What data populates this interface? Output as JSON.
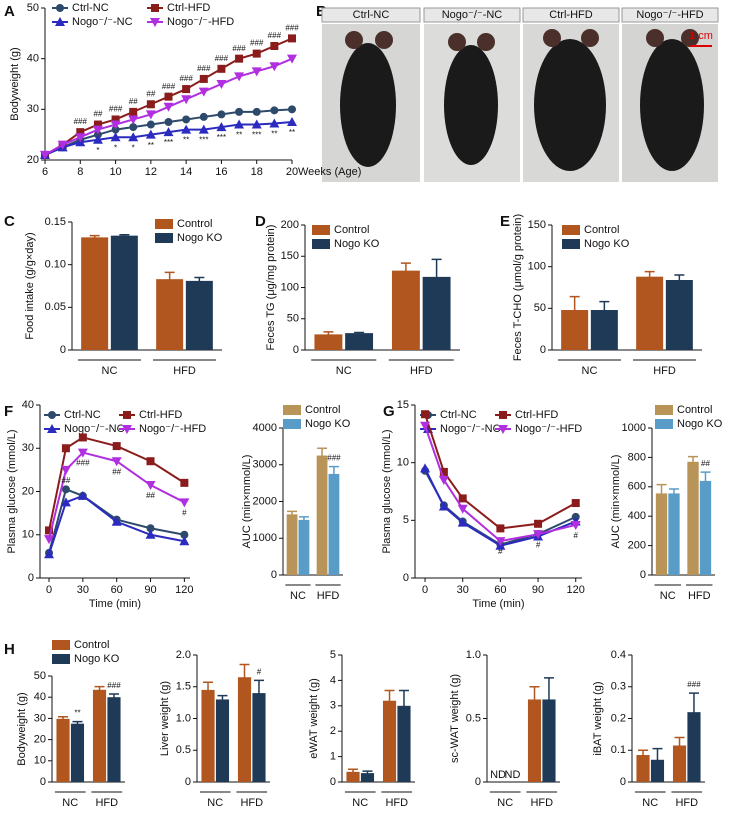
{
  "photos": {
    "panel": "B",
    "labels": [
      "Ctrl-NC",
      "Nogo⁻/⁻-NC",
      "Ctrl-HFD",
      "Nogo⁻/⁻-HFD"
    ],
    "scale_bar": "1 cm"
  },
  "chart_data": [
    {
      "type": "line",
      "panel": "A",
      "xlabel": "Weeks (Age)",
      "ylabel": "Bodyweight (g)",
      "x": [
        6,
        7,
        8,
        9,
        10,
        11,
        12,
        13,
        14,
        15,
        16,
        17,
        18,
        19,
        20
      ],
      "xlim": [
        6,
        20
      ],
      "xticks": [
        6,
        8,
        10,
        12,
        14,
        16,
        18,
        20
      ],
      "ylim": [
        20,
        50
      ],
      "yticks": [
        20,
        30,
        40,
        50
      ],
      "legend": "upper left",
      "series": [
        {
          "name": "Ctrl-NC",
          "color": "#2e4a6b",
          "marker": "circle",
          "values": [
            21,
            22.5,
            24,
            25,
            26,
            26.5,
            27,
            27.5,
            28,
            28.5,
            29,
            29.5,
            29.5,
            29.8,
            30
          ]
        },
        {
          "name": "Ctrl-HFD",
          "color": "#8b1c1c",
          "marker": "square",
          "values": [
            21,
            23,
            25.5,
            27,
            28,
            29.5,
            31,
            32.5,
            34,
            36,
            38,
            40,
            41,
            42.5,
            44
          ]
        },
        {
          "name": "Nogo⁻/⁻-NC",
          "color": "#2b2bc0",
          "marker": "triangle",
          "values": [
            21,
            22.5,
            23.5,
            24,
            24.5,
            24.5,
            25,
            25.5,
            26,
            26,
            26.5,
            27,
            27,
            27.2,
            27.5
          ]
        },
        {
          "name": "Nogo⁻/⁻-HFD",
          "color": "#b02fe0",
          "marker": "triangle-down",
          "values": [
            21,
            23,
            24.5,
            26,
            27,
            28,
            29,
            30.5,
            32,
            33.5,
            35,
            36.5,
            37.5,
            38.5,
            40
          ]
        }
      ],
      "annotations": [
        {
          "series": 1,
          "x": 8,
          "text": "###"
        },
        {
          "series": 1,
          "x": 9,
          "text": "##"
        },
        {
          "series": 1,
          "x": 10,
          "text": "###"
        },
        {
          "series": 1,
          "x": 11,
          "text": "##"
        },
        {
          "series": 1,
          "x": 12,
          "text": "##"
        },
        {
          "series": 1,
          "x": 13,
          "text": "###"
        },
        {
          "series": 1,
          "x": 14,
          "text": "###"
        },
        {
          "series": 1,
          "x": 15,
          "text": "###"
        },
        {
          "series": 1,
          "x": 16,
          "text": "###"
        },
        {
          "series": 1,
          "x": 17,
          "text": "###"
        },
        {
          "series": 1,
          "x": 18,
          "text": "###"
        },
        {
          "series": 1,
          "x": 19,
          "text": "###"
        },
        {
          "series": 1,
          "x": 20,
          "text": "###"
        },
        {
          "series": 2,
          "x": 9,
          "text": "*"
        },
        {
          "series": 2,
          "x": 10,
          "text": "*"
        },
        {
          "series": 2,
          "x": 11,
          "text": "*"
        },
        {
          "series": 2,
          "x": 12,
          "text": "**"
        },
        {
          "series": 2,
          "x": 13,
          "text": "***"
        },
        {
          "series": 2,
          "x": 14,
          "text": "**"
        },
        {
          "series": 2,
          "x": 15,
          "text": "***"
        },
        {
          "series": 2,
          "x": 16,
          "text": "***"
        },
        {
          "series": 2,
          "x": 17,
          "text": "**"
        },
        {
          "series": 2,
          "x": 18,
          "text": "***"
        },
        {
          "series": 2,
          "x": 19,
          "text": "**"
        },
        {
          "series": 2,
          "x": 20,
          "text": "**"
        }
      ]
    },
    {
      "type": "bar",
      "panel": "C",
      "ylabel": "Food intake (g/g×day)",
      "categories": [
        "NC",
        "HFD"
      ],
      "ylim": [
        0,
        0.15
      ],
      "yticks": [
        0,
        0.05,
        {
          "value": 0.1,
          "label": "0.10"
        },
        0.15
      ],
      "legend": "upper right",
      "series": [
        {
          "name": "Control",
          "color": "#b0561e",
          "values": [
            0.132,
            0.083
          ],
          "errors": [
            0.002,
            0.008
          ]
        },
        {
          "name": "Nogo KO",
          "color": "#1e3a56",
          "values": [
            0.134,
            0.081
          ],
          "errors": [
            0.001,
            0.004
          ]
        }
      ]
    },
    {
      "type": "bar",
      "panel": "D",
      "ylabel": "Feces TG (μg/mg protein)",
      "categories": [
        "NC",
        "HFD"
      ],
      "ylim": [
        0,
        200
      ],
      "yticks": [
        0,
        50,
        100,
        150,
        200
      ],
      "legend": "upper left",
      "series": [
        {
          "name": "Control",
          "color": "#b0561e",
          "values": [
            25,
            127
          ],
          "errors": [
            4,
            12
          ]
        },
        {
          "name": "Nogo KO",
          "color": "#1e3a56",
          "values": [
            27,
            117
          ],
          "errors": [
            1,
            28
          ]
        }
      ]
    },
    {
      "type": "bar",
      "panel": "E",
      "ylabel": "Feces T-CHO (μmol/g protein)",
      "categories": [
        "NC",
        "HFD"
      ],
      "ylim": [
        0,
        150
      ],
      "yticks": [
        0,
        50,
        100,
        150
      ],
      "legend": "upper left",
      "series": [
        {
          "name": "Control",
          "color": "#b0561e",
          "values": [
            48,
            88
          ],
          "errors": [
            16,
            6
          ]
        },
        {
          "name": "Nogo KO",
          "color": "#1e3a56",
          "values": [
            48,
            84
          ],
          "errors": [
            10,
            6
          ]
        }
      ]
    },
    {
      "type": "line",
      "panel": "F",
      "xlabel": "Time (min)",
      "ylabel": "Plasma glucose (mmol/L)",
      "x": [
        0,
        15,
        30,
        60,
        90,
        120
      ],
      "xlim": [
        -8,
        125
      ],
      "xticks": [
        0,
        30,
        60,
        90,
        120
      ],
      "ylim": [
        0,
        40
      ],
      "yticks": [
        0,
        10,
        20,
        30,
        40
      ],
      "legend": "upper left",
      "series": [
        {
          "name": "Ctrl-NC",
          "color": "#2e4a6b",
          "marker": "circle",
          "values": [
            5.8,
            20.5,
            19,
            13.5,
            11.5,
            10
          ]
        },
        {
          "name": "Ctrl-HFD",
          "color": "#8b1c1c",
          "marker": "square",
          "values": [
            11,
            30,
            32.5,
            30.5,
            27,
            22
          ]
        },
        {
          "name": "Nogo⁻/⁻-NC",
          "color": "#2b2bc0",
          "marker": "triangle",
          "values": [
            5.5,
            17.5,
            19,
            13,
            10,
            8.5
          ]
        },
        {
          "name": "Nogo⁻/⁻-HFD",
          "color": "#b02fe0",
          "marker": "triangle-down",
          "values": [
            9,
            25,
            29,
            27,
            21.5,
            17.5
          ]
        }
      ],
      "annotations": [
        {
          "series": 3,
          "x": 15,
          "text": "##"
        },
        {
          "series": 3,
          "x": 30,
          "text": "###"
        },
        {
          "series": 3,
          "x": 60,
          "text": "##"
        },
        {
          "series": 3,
          "x": 90,
          "text": "##"
        },
        {
          "series": 3,
          "x": 120,
          "text": "#"
        }
      ]
    },
    {
      "type": "bar",
      "ylabel": "AUC (min×mmol/L)",
      "categories": [
        "NC",
        "HFD"
      ],
      "ylim": [
        0,
        4000
      ],
      "yticks": [
        0,
        1000,
        2000,
        3000,
        4000
      ],
      "legend": "upper left",
      "series": [
        {
          "name": "Control",
          "color": "#b89458",
          "values": [
            1650,
            3250
          ],
          "errors": [
            80,
            200
          ]
        },
        {
          "name": "Nogo KO",
          "color": "#5a9cc8",
          "values": [
            1500,
            2750
          ],
          "errors": [
            80,
            200
          ]
        }
      ],
      "annotations": [
        {
          "series": 1,
          "index": 1,
          "text": "###"
        }
      ]
    },
    {
      "type": "line",
      "panel": "G",
      "xlabel": "Time (min)",
      "ylabel": "Plasma glucose (mmol/L)",
      "x": [
        0,
        15,
        30,
        60,
        90,
        120
      ],
      "xlim": [
        -8,
        125
      ],
      "xticks": [
        0,
        30,
        60,
        90,
        120
      ],
      "ylim": [
        0,
        15
      ],
      "yticks": [
        0,
        5,
        10,
        15
      ],
      "legend": "upper left",
      "series": [
        {
          "name": "Ctrl-NC",
          "color": "#2e4a6b",
          "marker": "circle",
          "values": [
            9.3,
            6.3,
            4.9,
            2.9,
            3.8,
            5.3
          ]
        },
        {
          "name": "Ctrl-HFD",
          "color": "#8b1c1c",
          "marker": "square",
          "values": [
            14.2,
            9.2,
            6.9,
            4.3,
            4.7,
            6.5
          ]
        },
        {
          "name": "Nogo⁻/⁻-NC",
          "color": "#2b2bc0",
          "marker": "triangle",
          "values": [
            9.5,
            6.2,
            4.8,
            2.8,
            3.6,
            4.9
          ]
        },
        {
          "name": "Nogo⁻/⁻-HFD",
          "color": "#b02fe0",
          "marker": "triangle-down",
          "values": [
            13.2,
            8.5,
            6,
            3.2,
            3.8,
            4.6
          ]
        }
      ],
      "annotations": [
        {
          "series": 3,
          "x": 60,
          "text": "#"
        },
        {
          "series": 3,
          "x": 90,
          "text": "#"
        },
        {
          "series": 3,
          "x": 120,
          "text": "#"
        }
      ]
    },
    {
      "type": "bar",
      "ylabel": "AUC (min×mmol/L)",
      "categories": [
        "NC",
        "HFD"
      ],
      "ylim": [
        0,
        1000
      ],
      "yticks": [
        0,
        200,
        400,
        600,
        800,
        1000
      ],
      "legend": "upper left",
      "series": [
        {
          "name": "Control",
          "color": "#b89458",
          "values": [
            555,
            770
          ],
          "errors": [
            60,
            35
          ]
        },
        {
          "name": "Nogo KO",
          "color": "#5a9cc8",
          "values": [
            555,
            640
          ],
          "errors": [
            30,
            60
          ]
        }
      ],
      "annotations": [
        {
          "series": 1,
          "index": 1,
          "text": "##"
        }
      ]
    },
    {
      "type": "bar",
      "panel": "H",
      "ylabel": "Bodyweight (g)",
      "categories": [
        "NC",
        "HFD"
      ],
      "ylim": [
        0,
        50
      ],
      "yticks": [
        0,
        10,
        20,
        30,
        40,
        50
      ],
      "legend": "upper left",
      "series": [
        {
          "name": "Control",
          "color": "#b0561e",
          "values": [
            29.8,
            43.5
          ],
          "errors": [
            1,
            1.5
          ]
        },
        {
          "name": "Nogo KO",
          "color": "#1e3a56",
          "values": [
            27.5,
            40
          ],
          "errors": [
            1,
            1.5
          ]
        }
      ],
      "annotations": [
        {
          "series": 1,
          "index": 0,
          "text": "**"
        },
        {
          "series": 1,
          "index": 1,
          "text": "###"
        }
      ]
    },
    {
      "type": "bar",
      "ylabel": "Liver weight (g)",
      "categories": [
        "NC",
        "HFD"
      ],
      "ylim": [
        0,
        2
      ],
      "yticks": [
        0,
        0.5,
        {
          "value": 1,
          "label": "1.0"
        },
        1.5,
        {
          "value": 2,
          "label": "2.0"
        }
      ],
      "series": [
        {
          "color": "#b0561e",
          "values": [
            1.45,
            1.65
          ],
          "errors": [
            0.12,
            0.2
          ]
        },
        {
          "color": "#1e3a56",
          "values": [
            1.3,
            1.4
          ],
          "errors": [
            0.06,
            0.2
          ]
        }
      ],
      "annotations": [
        {
          "series": 1,
          "index": 1,
          "text": "#"
        }
      ]
    },
    {
      "type": "bar",
      "ylabel": "eWAT weight (g)",
      "categories": [
        "NC",
        "HFD"
      ],
      "ylim": [
        0,
        5
      ],
      "yticks": [
        0,
        1,
        2,
        3,
        4,
        5
      ],
      "series": [
        {
          "color": "#b0561e",
          "values": [
            0.4,
            3.2
          ],
          "errors": [
            0.1,
            0.4
          ]
        },
        {
          "color": "#1e3a56",
          "values": [
            0.35,
            3.0
          ],
          "errors": [
            0.08,
            0.6
          ]
        }
      ]
    },
    {
      "type": "bar",
      "ylabel": "sc-WAT weight (g)",
      "categories": [
        "NC",
        "HFD"
      ],
      "ylim": [
        0,
        1
      ],
      "yticks": [
        0,
        0.5,
        {
          "value": 1,
          "label": "1.0"
        }
      ],
      "series": [
        {
          "color": "#b0561e",
          "values": [
            null,
            0.65
          ],
          "value_labels": [
            "ND",
            null
          ],
          "errors": [
            null,
            0.1
          ]
        },
        {
          "color": "#1e3a56",
          "values": [
            null,
            0.65
          ],
          "value_labels": [
            "ND",
            null
          ],
          "errors": [
            null,
            0.17
          ]
        }
      ]
    },
    {
      "type": "bar",
      "ylabel": "iBAT weight (g)",
      "categories": [
        "NC",
        "HFD"
      ],
      "ylim": [
        0,
        0.4
      ],
      "yticks": [
        0,
        0.1,
        0.2,
        0.3,
        0.4
      ],
      "series": [
        {
          "color": "#b0561e",
          "values": [
            0.085,
            0.115
          ],
          "errors": [
            0.015,
            0.025
          ]
        },
        {
          "color": "#1e3a56",
          "values": [
            0.07,
            0.22
          ],
          "errors": [
            0.035,
            0.06
          ]
        }
      ],
      "annotations": [
        {
          "series": 1,
          "index": 1,
          "text": "###"
        }
      ]
    }
  ]
}
